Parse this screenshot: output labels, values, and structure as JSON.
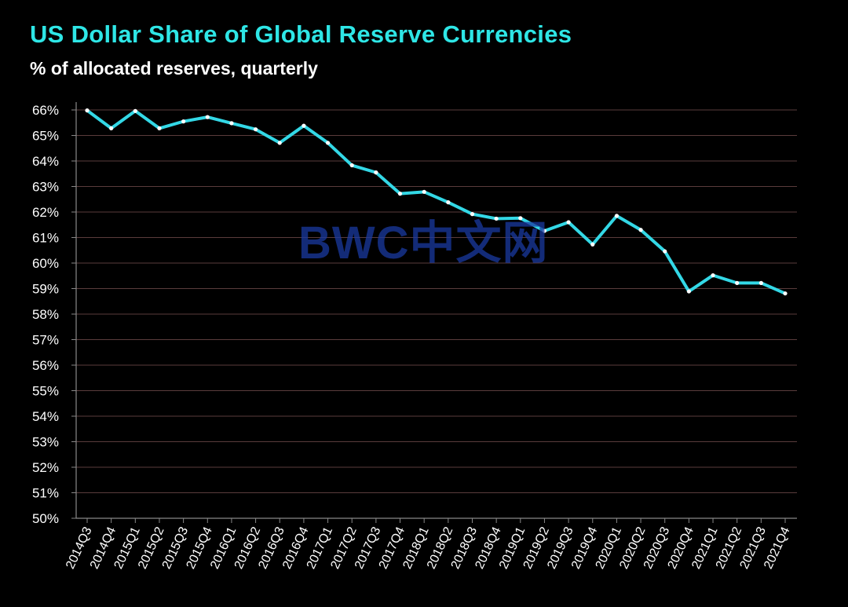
{
  "colors": {
    "title": "#2ee6e6",
    "line": "#33d8e6",
    "gridline": "#5a3c3c",
    "axis": "#888888",
    "watermark": "#1a3aa0",
    "background": "#000000"
  },
  "watermark": {
    "text": "BWC中文网"
  },
  "chart_data": {
    "type": "line",
    "title": "US Dollar  Share  of Global  Reserve Currencies",
    "subtitle": "% of allocated reserves, quarterly",
    "xlabel": "",
    "ylabel": "",
    "ylim": [
      50,
      66
    ],
    "grid": true,
    "yticks": [
      "50%",
      "51%",
      "52%",
      "53%",
      "54%",
      "55%",
      "56%",
      "57%",
      "58%",
      "59%",
      "60%",
      "61%",
      "62%",
      "63%",
      "64%",
      "65%",
      "66%"
    ],
    "x": [
      "2014Q3",
      "2014Q4",
      "2015Q1",
      "2015Q2",
      "2015Q3",
      "2015Q4",
      "2016Q1",
      "2016Q2",
      "2016Q3",
      "2016Q4",
      "2017Q1",
      "2017Q2",
      "2017Q3",
      "2017Q4",
      "2018Q1",
      "2018Q2",
      "2018Q3",
      "2018Q4",
      "2019Q1",
      "2019Q2",
      "2019Q3",
      "2019Q4",
      "2020Q1",
      "2020Q2",
      "2020Q3",
      "2020Q4",
      "2021Q1",
      "2021Q2",
      "2021Q3",
      "2021Q4"
    ],
    "series": [
      {
        "values": [
          65.98,
          65.28,
          65.96,
          65.28,
          65.55,
          65.72,
          65.48,
          65.24,
          64.71,
          65.38,
          64.71,
          63.83,
          63.55,
          62.72,
          62.79,
          62.38,
          61.92,
          61.74,
          61.76,
          61.26,
          61.6,
          60.73,
          61.85,
          61.3,
          60.46,
          58.89,
          59.52,
          59.22,
          59.22,
          58.81
        ]
      }
    ]
  }
}
